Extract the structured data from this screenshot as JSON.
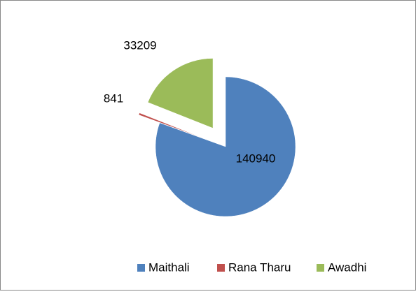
{
  "chart_data": {
    "type": "pie",
    "categories": [
      "Maithali",
      "Rana Tharu",
      "Awadhi"
    ],
    "values": [
      140940,
      841,
      33209
    ],
    "colors": [
      "#4f81bd",
      "#c0504d",
      "#9bbb59"
    ],
    "legend": "bottom"
  }
}
